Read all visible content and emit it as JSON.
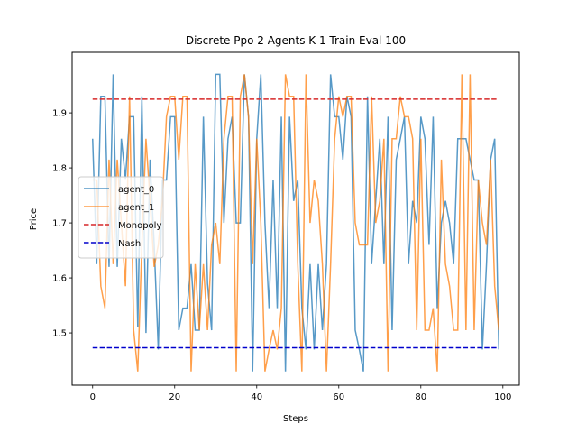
{
  "chart_data": {
    "type": "line",
    "title": "Discrete Ppo 2 Agents K 1 Train Eval 100",
    "xlabel": "Steps",
    "ylabel": "Price",
    "xlim": [
      -5,
      104
    ],
    "ylim": [
      1.405,
      2.01
    ],
    "xticks": [
      0,
      20,
      40,
      60,
      80,
      100
    ],
    "yticks": [
      1.5,
      1.6,
      1.7,
      1.8,
      1.9
    ],
    "grid": false,
    "legend_position": "center-left",
    "series": [
      {
        "name": "agent_0",
        "color": "#1f77b4",
        "style": "solid",
        "x": [
          0,
          1,
          2,
          3,
          4,
          5,
          6,
          7,
          8,
          9,
          10,
          11,
          12,
          13,
          14,
          15,
          16,
          17,
          18,
          19,
          20,
          21,
          22,
          23,
          24,
          25,
          26,
          27,
          28,
          29,
          30,
          31,
          32,
          33,
          34,
          35,
          36,
          37,
          38,
          39,
          40,
          41,
          42,
          43,
          44,
          45,
          46,
          47,
          48,
          49,
          50,
          51,
          52,
          53,
          54,
          55,
          56,
          57,
          58,
          59,
          60,
          61,
          62,
          63,
          64,
          65,
          66,
          67,
          68,
          69,
          70,
          71,
          72,
          73,
          74,
          75,
          76,
          77,
          78,
          79,
          80,
          81,
          82,
          83,
          84,
          85,
          86,
          87,
          88,
          89,
          90,
          91,
          92,
          93,
          94,
          95,
          96,
          97,
          98,
          99
        ],
        "values": [
          1.853,
          1.625,
          1.93,
          1.93,
          1.62,
          1.97,
          1.62,
          1.853,
          1.78,
          1.893,
          1.893,
          1.51,
          1.93,
          1.5,
          1.815,
          1.66,
          1.47,
          1.778,
          1.778,
          1.893,
          1.893,
          1.505,
          1.545,
          1.545,
          1.625,
          1.505,
          1.505,
          1.893,
          1.59,
          1.505,
          1.97,
          1.97,
          1.7,
          1.853,
          1.893,
          1.7,
          1.7,
          1.97,
          1.893,
          1.43,
          1.853,
          1.97,
          1.7,
          1.545,
          1.778,
          1.545,
          1.893,
          1.43,
          1.893,
          1.74,
          1.778,
          1.545,
          1.47,
          1.625,
          1.47,
          1.625,
          1.505,
          1.625,
          1.97,
          1.893,
          1.893,
          1.815,
          1.93,
          1.893,
          1.505,
          1.47,
          1.43,
          1.93,
          1.625,
          1.74,
          1.853,
          1.625,
          1.893,
          1.505,
          1.815,
          1.853,
          1.893,
          1.625,
          1.74,
          1.7,
          1.893,
          1.853,
          1.66,
          1.893,
          1.545,
          1.7,
          1.74,
          1.7,
          1.625,
          1.853,
          1.853,
          1.853,
          1.815,
          1.778,
          1.778,
          1.47,
          1.625,
          1.815,
          1.853,
          1.47
        ]
      },
      {
        "name": "agent_1",
        "color": "#ff7f0e",
        "style": "solid",
        "x": [
          0,
          1,
          2,
          3,
          4,
          5,
          6,
          7,
          8,
          9,
          10,
          11,
          12,
          13,
          14,
          15,
          16,
          17,
          18,
          19,
          20,
          21,
          22,
          23,
          24,
          25,
          26,
          27,
          28,
          29,
          30,
          31,
          32,
          33,
          34,
          35,
          36,
          37,
          38,
          39,
          40,
          41,
          42,
          43,
          44,
          45,
          46,
          47,
          48,
          49,
          50,
          51,
          52,
          53,
          54,
          55,
          56,
          57,
          58,
          59,
          60,
          61,
          62,
          63,
          64,
          65,
          66,
          67,
          68,
          69,
          70,
          71,
          72,
          73,
          74,
          75,
          76,
          77,
          78,
          79,
          80,
          81,
          82,
          83,
          84,
          85,
          86,
          87,
          88,
          89,
          90,
          91,
          92,
          93,
          94,
          95,
          96,
          97,
          98,
          99
        ],
        "values": [
          1.778,
          1.778,
          1.585,
          1.545,
          1.815,
          1.625,
          1.815,
          1.7,
          1.585,
          1.93,
          1.505,
          1.43,
          1.66,
          1.853,
          1.74,
          1.62,
          1.66,
          1.74,
          1.893,
          1.93,
          1.93,
          1.815,
          1.93,
          1.93,
          1.43,
          1.625,
          1.505,
          1.625,
          1.505,
          1.66,
          1.7,
          1.625,
          1.853,
          1.93,
          1.93,
          1.43,
          1.93,
          1.97,
          1.893,
          1.625,
          1.853,
          1.7,
          1.43,
          1.47,
          1.505,
          1.47,
          1.545,
          1.97,
          1.93,
          1.93,
          1.625,
          1.43,
          1.97,
          1.7,
          1.778,
          1.74,
          1.625,
          1.43,
          1.625,
          1.853,
          1.93,
          1.893,
          1.93,
          1.93,
          1.7,
          1.66,
          1.66,
          1.66,
          1.93,
          1.7,
          1.74,
          1.853,
          1.43,
          1.853,
          1.853,
          1.93,
          1.893,
          1.893,
          1.853,
          1.505,
          1.853,
          1.505,
          1.505,
          1.545,
          1.43,
          1.815,
          1.625,
          1.585,
          1.505,
          1.505,
          1.97,
          1.505,
          1.97,
          1.505,
          1.778,
          1.7,
          1.66,
          1.815,
          1.585,
          1.505
        ]
      },
      {
        "name": "Monopoly",
        "color": "#d62728",
        "style": "dashed",
        "x": [
          0,
          99
        ],
        "values": [
          1.925,
          1.925
        ]
      },
      {
        "name": "Nash",
        "color": "#0000cc",
        "style": "dashed",
        "x": [
          0,
          99
        ],
        "values": [
          1.473,
          1.473
        ]
      }
    ]
  }
}
